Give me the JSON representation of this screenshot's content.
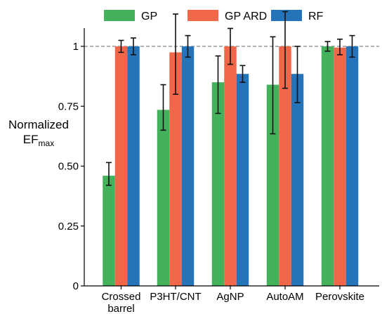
{
  "chart_data": {
    "type": "bar",
    "title": "",
    "xlabel": "",
    "ylabel": "Normalized",
    "ylabel_line2": "EF",
    "ylabel_line2_sub": "max",
    "ylim": [
      0,
      1.08
    ],
    "yticks": [
      {
        "value": 0,
        "label": "0"
      },
      {
        "value": 0.25,
        "label": "0.25"
      },
      {
        "value": 0.5,
        "label": "0.50"
      },
      {
        "value": 0.75,
        "label": "0.75"
      },
      {
        "value": 1,
        "label": "1"
      }
    ],
    "reference_line": 1,
    "legend_placement": "top",
    "categories": [
      {
        "line1": "Crossed",
        "line2": "barrel"
      },
      {
        "line1": "P3HT/CNT",
        "line2": ""
      },
      {
        "line1": "AgNP",
        "line2": ""
      },
      {
        "line1": "AutoAM",
        "line2": ""
      },
      {
        "line1": "Perovskite",
        "line2": ""
      }
    ],
    "series": [
      {
        "name": "GP",
        "color": "#44b15d",
        "values": [
          0.46,
          0.735,
          0.85,
          0.84,
          1.0
        ],
        "err_low": [
          0.42,
          0.65,
          0.72,
          0.635,
          0.98
        ],
        "err_high": [
          0.515,
          0.84,
          0.96,
          1.04,
          1.02
        ]
      },
      {
        "name": "GP ARD",
        "color": "#f0674a",
        "values": [
          1.0,
          0.975,
          1.0,
          1.0,
          0.995
        ],
        "err_low": [
          0.975,
          0.8,
          0.925,
          0.825,
          0.965
        ],
        "err_high": [
          1.025,
          1.135,
          1.075,
          1.145,
          1.03
        ]
      },
      {
        "name": "RF",
        "color": "#2573b8",
        "values": [
          1.0,
          1.0,
          0.885,
          0.885,
          1.0
        ],
        "err_low": [
          0.965,
          0.955,
          0.85,
          0.765,
          0.955
        ],
        "err_high": [
          1.035,
          1.045,
          0.92,
          1.0,
          1.045
        ]
      }
    ]
  }
}
